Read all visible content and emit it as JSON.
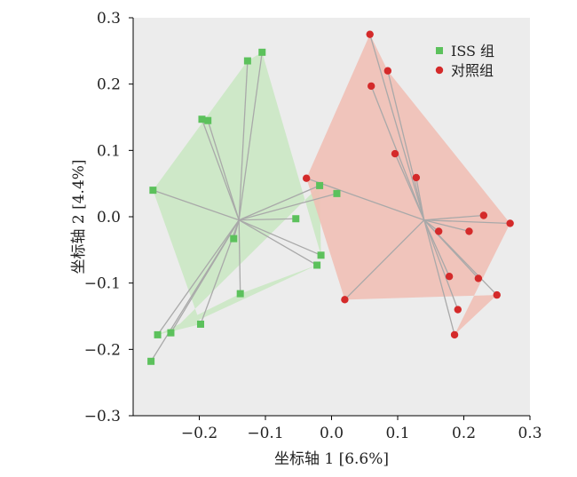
{
  "chart_data": {
    "type": "scatter",
    "subtype": "PCoA ordination with convex hulls and spider lines to centroids",
    "xlabel": "坐标轴 1 [6.6%]",
    "ylabel": "坐标轴 2 [4.4%]",
    "xlim": [
      -0.3,
      0.3
    ],
    "ylim": [
      -0.3,
      0.3
    ],
    "xticks": [
      -0.2,
      -0.1,
      0.0,
      0.1,
      0.2,
      0.3
    ],
    "xtick_labels": [
      "−0.2",
      "−0.1",
      "0.0",
      "0.1",
      "0.2",
      "0.3"
    ],
    "yticks": [
      -0.3,
      -0.2,
      -0.1,
      0.0,
      0.1,
      0.2,
      0.3
    ],
    "ytick_labels": [
      "−0.3",
      "−0.2",
      "−0.1",
      "0.0",
      "0.1",
      "0.2",
      "0.3"
    ],
    "grid": false,
    "legend_position": "top-right",
    "background_color": "#ececec",
    "series": [
      {
        "name": "ISS 组",
        "marker": "square",
        "color": "#5cc15c",
        "hull_color": "#c9e8c2",
        "centroid": [
          -0.14,
          -0.005
        ],
        "hull_order": [
          4,
          1,
          0,
          8,
          9,
          14,
          7,
          11,
          13,
          12
        ],
        "points": [
          [
            -0.105,
            0.248
          ],
          [
            -0.127,
            0.235
          ],
          [
            -0.196,
            0.147
          ],
          [
            -0.187,
            0.145
          ],
          [
            -0.27,
            0.04
          ],
          [
            -0.054,
            -0.003
          ],
          [
            -0.148,
            -0.033
          ],
          [
            -0.022,
            -0.073
          ],
          [
            -0.016,
            -0.058
          ],
          [
            -0.018,
            0.047
          ],
          [
            0.008,
            0.035
          ],
          [
            -0.138,
            -0.116
          ],
          [
            -0.198,
            -0.162
          ],
          [
            -0.263,
            -0.178
          ],
          [
            -0.243,
            -0.175
          ],
          [
            -0.273,
            -0.218
          ]
        ]
      },
      {
        "name": "对照组",
        "marker": "circle",
        "color": "#d42a2a",
        "hull_color": "#f1bdb3",
        "centroid": [
          0.14,
          -0.005
        ],
        "hull_order": [
          0,
          1,
          15,
          14,
          12,
          3,
          2
        ],
        "points": [
          [
            0.058,
            0.275
          ],
          [
            0.085,
            0.22
          ],
          [
            -0.038,
            0.058
          ],
          [
            0.02,
            -0.125
          ],
          [
            0.06,
            0.197
          ],
          [
            0.096,
            0.095
          ],
          [
            0.128,
            0.059
          ],
          [
            0.162,
            -0.022
          ],
          [
            0.208,
            -0.022
          ],
          [
            0.23,
            0.002
          ],
          [
            0.178,
            -0.09
          ],
          [
            0.222,
            -0.093
          ],
          [
            0.25,
            -0.118
          ],
          [
            0.191,
            -0.14
          ],
          [
            0.186,
            -0.178
          ],
          [
            0.27,
            -0.01
          ]
        ]
      }
    ]
  },
  "colors": {
    "plot_background": "#ececec",
    "spider_line": "#a9a9a9",
    "frame": "#000000"
  }
}
